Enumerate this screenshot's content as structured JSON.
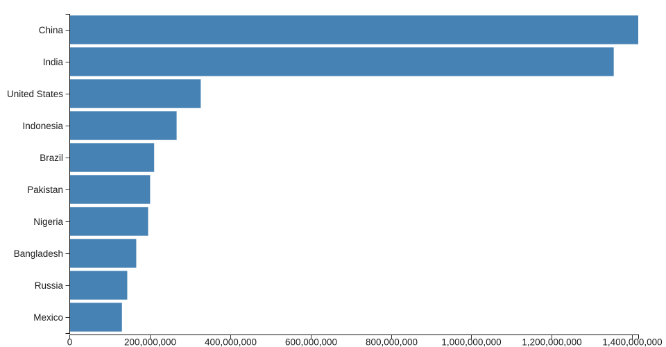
{
  "chart_data": {
    "type": "bar",
    "orientation": "horizontal",
    "categories": [
      "China",
      "India",
      "United States",
      "Indonesia",
      "Brazil",
      "Pakistan",
      "Nigeria",
      "Bangladesh",
      "Russia",
      "Mexico"
    ],
    "values": [
      1415045928,
      1354051854,
      326766748,
      266794980,
      210867954,
      200813818,
      195875237,
      166368149,
      143964709,
      130759074
    ],
    "xlabel": "",
    "ylabel": "",
    "xlim": [
      0,
      1415045928
    ],
    "x_tick_values": [
      0,
      200000000,
      400000000,
      600000000,
      800000000,
      1000000000,
      1200000000,
      1400000000
    ],
    "x_tick_labels": [
      "0",
      "200,000,000",
      "400,000,000",
      "600,000,000",
      "800,000,000",
      "1,000,000,000",
      "1,200,000,000",
      "1,400,000,000"
    ],
    "grid": false,
    "legend": "none",
    "bar_color": "#4682b4",
    "axis_color": "#111111",
    "tick_color": "#333333",
    "label_color": "#1a1a1a"
  }
}
